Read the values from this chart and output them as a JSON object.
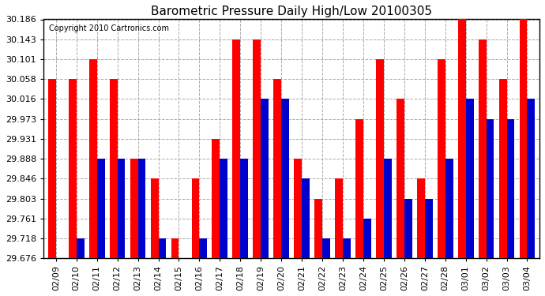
{
  "title": "Barometric Pressure Daily High/Low 20100305",
  "copyright": "Copyright 2010 Cartronics.com",
  "dates": [
    "02/09",
    "02/10",
    "02/11",
    "02/12",
    "02/13",
    "02/14",
    "02/15",
    "02/16",
    "02/17",
    "02/18",
    "02/19",
    "02/20",
    "02/21",
    "02/22",
    "02/23",
    "02/24",
    "02/25",
    "02/26",
    "02/27",
    "02/28",
    "03/01",
    "03/02",
    "03/03",
    "03/04"
  ],
  "highs": [
    30.058,
    30.058,
    30.101,
    30.058,
    29.888,
    29.846,
    29.718,
    29.846,
    29.931,
    30.143,
    30.143,
    30.058,
    29.888,
    29.803,
    29.846,
    29.973,
    30.101,
    30.016,
    29.846,
    30.101,
    30.186,
    30.143,
    30.058,
    30.186
  ],
  "lows": [
    29.676,
    29.718,
    29.888,
    29.888,
    29.888,
    29.718,
    29.676,
    29.718,
    29.888,
    29.888,
    30.016,
    30.016,
    29.846,
    29.718,
    29.718,
    29.761,
    29.888,
    29.803,
    29.803,
    29.888,
    30.016,
    29.973,
    29.973,
    30.016
  ],
  "color_high": "#ff0000",
  "color_low": "#0000cc",
  "ylim_min": 29.676,
  "ylim_max": 30.186,
  "yticks": [
    29.676,
    29.718,
    29.761,
    29.803,
    29.846,
    29.888,
    29.931,
    29.973,
    30.016,
    30.058,
    30.101,
    30.143,
    30.186
  ],
  "background_color": "#ffffff",
  "plot_bg_color": "#ffffff",
  "grid_color": "#aaaaaa",
  "bar_width": 0.38,
  "title_fontsize": 11,
  "tick_fontsize": 8,
  "copyright_fontsize": 7
}
